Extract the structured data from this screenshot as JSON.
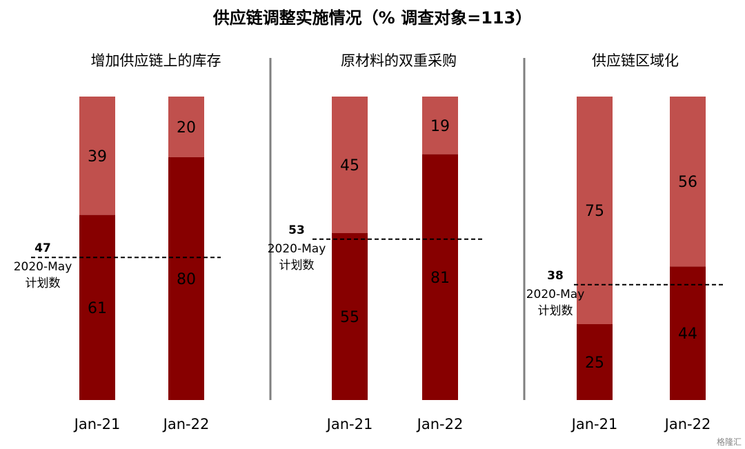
{
  "chart_data": {
    "type": "bar",
    "title": "供应链调整实施情况（% 调查对象=113）",
    "categories": [
      "Jan-21",
      "Jan-22"
    ],
    "colors": {
      "bottom": "#870000",
      "top": "#c0504d",
      "divider": "#808080",
      "reference": "#000000"
    },
    "panels": [
      {
        "title": "增加供应链上的库存",
        "series": [
          {
            "values": [
              61,
              80
            ]
          },
          {
            "values": [
              39,
              20
            ]
          }
        ],
        "reference": {
          "value": 47,
          "label_line1": "2020-May",
          "label_line2": "计划数"
        }
      },
      {
        "title": "原材料的双重采购",
        "series": [
          {
            "values": [
              55,
              81
            ]
          },
          {
            "values": [
              45,
              19
            ]
          }
        ],
        "reference": {
          "value": 53,
          "label_line1": "2020-May",
          "label_line2": "计划数"
        }
      },
      {
        "title": "供应链区域化",
        "series": [
          {
            "values": [
              25,
              44
            ]
          },
          {
            "values": [
              75,
              56
            ]
          }
        ],
        "reference": {
          "value": 38,
          "label_line1": "2020-May",
          "label_line2": "计划数"
        }
      }
    ],
    "ylim": [
      0,
      100
    ],
    "stacked": true,
    "grid": false,
    "legend": false
  },
  "watermark": "格隆汇"
}
